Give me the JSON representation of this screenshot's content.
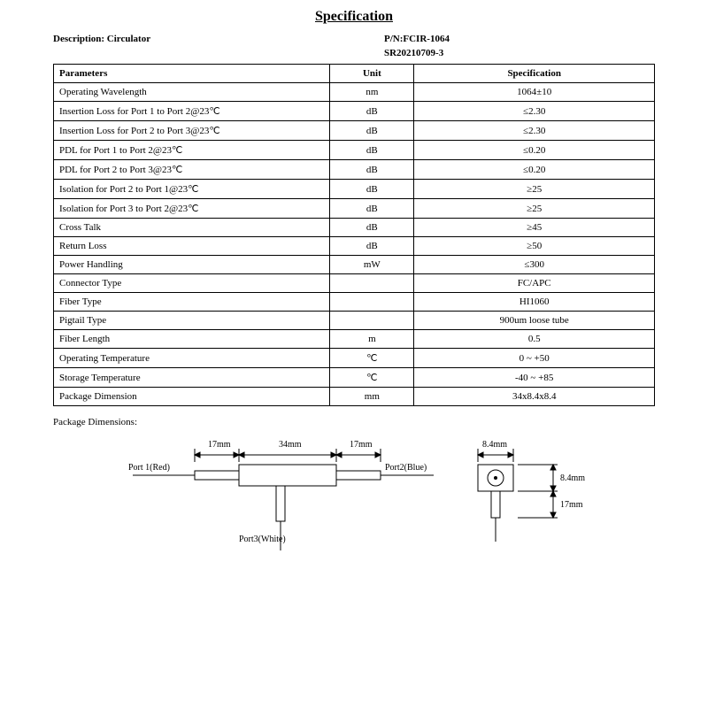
{
  "title": "Specification",
  "header": {
    "desc_label": "Description:",
    "desc_value": "Circulator",
    "pn_label": "P/N:",
    "pn_value": "FCIR-1064",
    "sr": "SR20210709-3"
  },
  "table": {
    "columns": [
      "Parameters",
      "Unit",
      "Specification"
    ],
    "rows": [
      [
        "Operating Wavelength",
        "nm",
        "1064±10"
      ],
      [
        "Insertion Loss for Port 1 to Port 2@23℃",
        "dB",
        "≤2.30"
      ],
      [
        "Insertion Loss for Port 2 to Port 3@23℃",
        "dB",
        "≤2.30"
      ],
      [
        "PDL for Port 1 to Port 2@23℃",
        "dB",
        "≤0.20"
      ],
      [
        "PDL for Port 2 to Port 3@23℃",
        "dB",
        "≤0.20"
      ],
      [
        "Isolation for Port 2 to Port 1@23℃",
        "dB",
        "≥25"
      ],
      [
        "Isolation for Port 3 to Port 2@23℃",
        "dB",
        "≥25"
      ],
      [
        "Cross Talk",
        "dB",
        "≥45"
      ],
      [
        "Return Loss",
        "dB",
        "≥50"
      ],
      [
        "Power Handling",
        "mW",
        "≤300"
      ],
      [
        "Connector Type",
        "",
        "FC/APC"
      ],
      [
        "Fiber Type",
        "",
        "HI1060"
      ],
      [
        "Pigtail Type",
        "",
        "900um loose tube"
      ],
      [
        "Fiber Length",
        "m",
        "0.5"
      ],
      [
        "Operating Temperature",
        "℃",
        "0 ~ +50"
      ],
      [
        "Storage Temperature",
        "℃",
        "-40 ~ +85"
      ],
      [
        "Package Dimension",
        "mm",
        "34x8.4x8.4"
      ]
    ]
  },
  "pkg_label": "Package Dimensions:",
  "diagram": {
    "port1": "Port 1(Red)",
    "port2": "Port2(Blue)",
    "port3": "Port3(White)",
    "d17a": "17mm",
    "d34": "34mm",
    "d17b": "17mm",
    "d84w": "8.4mm",
    "d84h": "8.4mm",
    "d17c": "17mm",
    "stroke": "#000000",
    "bg": "#ffffff"
  }
}
